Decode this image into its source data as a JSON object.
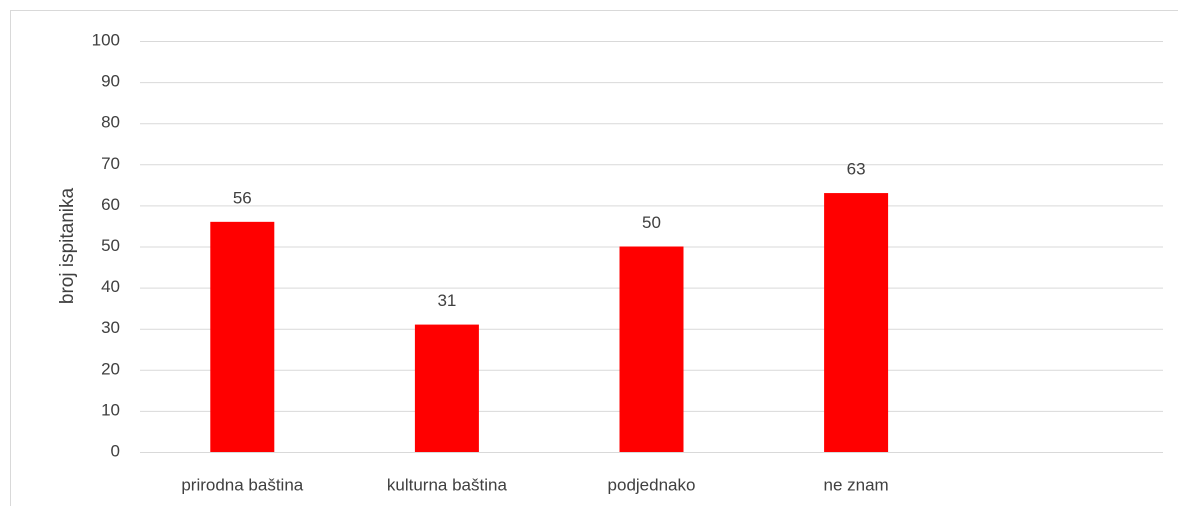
{
  "chart_data": {
    "type": "bar",
    "y_label": "broj ispitanika",
    "categories": [
      "prirodna baština",
      "kulturna baština",
      "podjednako",
      "ne znam",
      null
    ],
    "values": [
      56,
      31,
      50,
      63,
      null
    ],
    "color": "#ff0000",
    "ylim": [
      0,
      100
    ],
    "yticks": [
      0,
      10,
      20,
      30,
      40,
      50,
      60,
      70,
      80,
      90,
      100
    ],
    "grid": true
  }
}
